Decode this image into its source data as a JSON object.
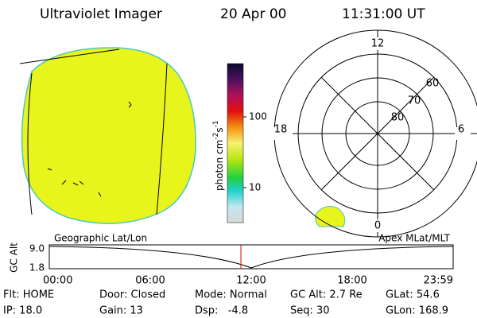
{
  "header": {
    "title": "Ultraviolet Imager",
    "date": "20 Apr 00",
    "time": "11:31:00 UT"
  },
  "colorbar": {
    "ticks": [
      "10",
      "100"
    ],
    "label": {
      "base": "photon cm",
      "exp1": "-2",
      "unit2": "s",
      "exp2": "-1"
    }
  },
  "polar": {
    "mlt": [
      "12",
      "18",
      "6",
      "0"
    ],
    "mlat": [
      "60",
      "70",
      "80"
    ]
  },
  "timeline": {
    "left_label": "Geographic Lat/Lon",
    "right_label": "Apex MLat/MLT",
    "y_axis_label": "GC Alt",
    "y_labels": [
      "9.0",
      "1.8"
    ],
    "x_labels": [
      "00:00",
      "06:00",
      "12:00",
      "18:00",
      "23:59"
    ]
  },
  "info": [
    [
      "Flt: HOME",
      "Door: Closed",
      "Mode: Normal",
      "GC Alt: 2.7 Re",
      "GLat: 54.6"
    ],
    [
      "IP: 18.0",
      "Gain: 13",
      "Dsp:   -4.8",
      "Seq: 30",
      "GLon: 168.9"
    ]
  ]
}
